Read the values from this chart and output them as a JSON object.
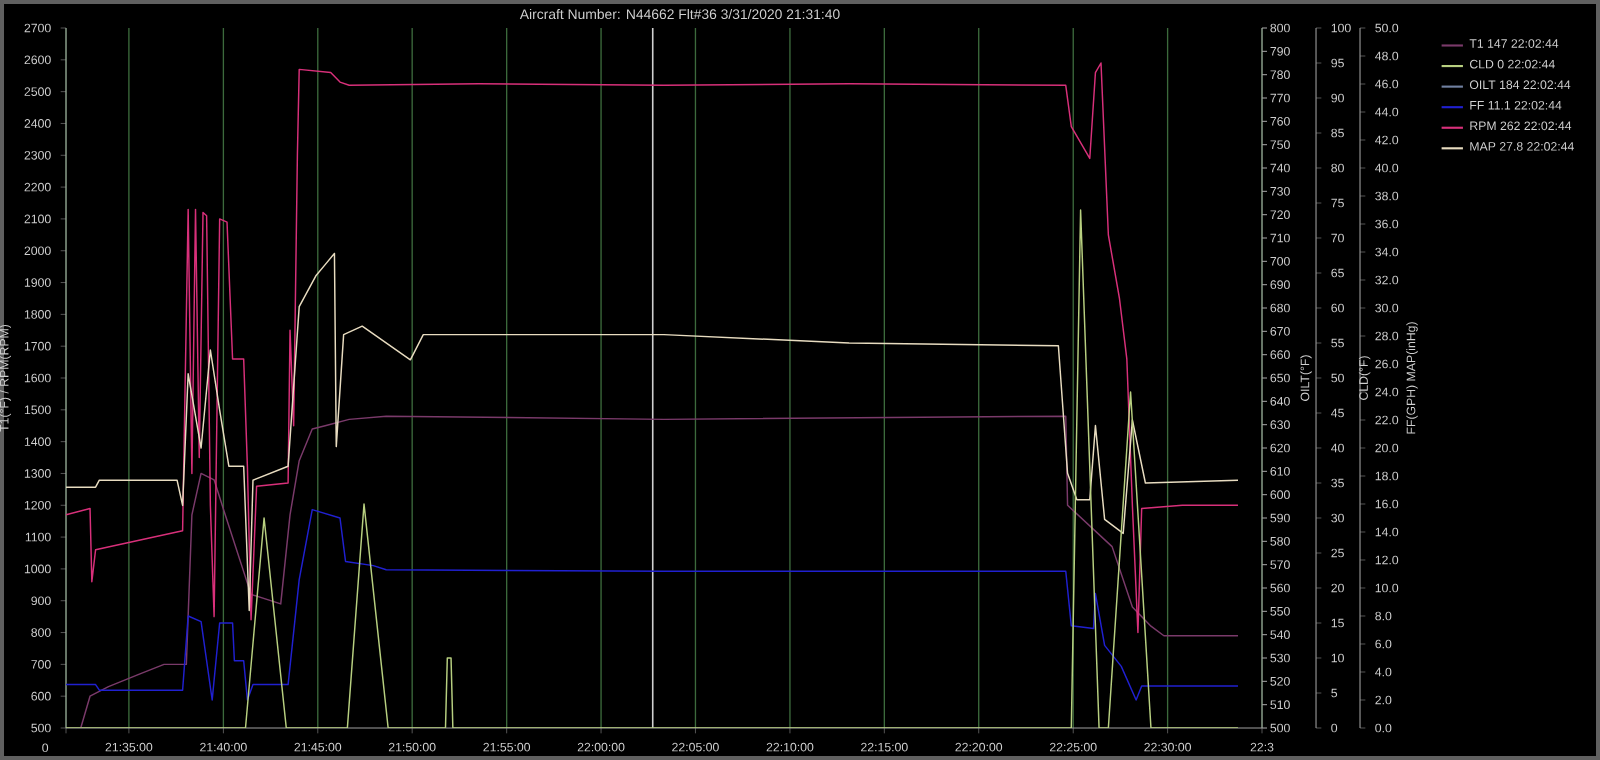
{
  "chart_data": {
    "type": "line",
    "title": "Aircraft Number: N44662 Flt#36 3/31/2020 21:31:40",
    "ylabel": "T1(°F) / RPM(RPM)",
    "y3label": "CLD(°F)",
    "y2label": "FF(GPH) MAP(inHg)",
    "annotations": [
      "0",
      "OILT(°F)",
      "500",
      "510",
      "520",
      "530",
      "540",
      "550",
      "560",
      "570",
      "580",
      "590",
      "600",
      "610",
      "620",
      "630",
      "640",
      "650",
      "660",
      "670",
      "680",
      "690",
      "700",
      "710",
      "720",
      "730",
      "740",
      "750",
      "760",
      "770",
      "780",
      "790",
      "800"
    ],
    "xlim": [
      21.5278,
      22.5833
    ],
    "xticks": [
      {
        "value": 21.5278,
        "label": null
      },
      {
        "value": 21.5833,
        "label": "21:35:00"
      },
      {
        "value": 21.6667,
        "label": "21:40:00"
      },
      {
        "value": 21.75,
        "label": "21:45:00"
      },
      {
        "value": 21.8333,
        "label": "21:50:00"
      },
      {
        "value": 21.9167,
        "label": "21:55:00"
      },
      {
        "value": 22.0,
        "label": "22:00:00"
      },
      {
        "value": 22.0833,
        "label": "22:05:00"
      },
      {
        "value": 22.1667,
        "label": "22:10:00"
      },
      {
        "value": 22.25,
        "label": "22:15:00"
      },
      {
        "value": 22.3333,
        "label": "22:20:00"
      },
      {
        "value": 22.4167,
        "label": "22:25:00"
      },
      {
        "value": 22.5,
        "label": "22:30:00"
      },
      {
        "value": 22.5833,
        "label": "22:3"
      }
    ],
    "ylim": [
      500,
      2700
    ],
    "yticks": [
      500,
      600,
      700,
      800,
      900,
      1000,
      1100,
      1200,
      1300,
      1400,
      1500,
      1600,
      1700,
      1800,
      1900,
      2000,
      2100,
      2200,
      2300,
      2400,
      2500,
      2600,
      2700
    ],
    "y3lim": [
      0,
      100
    ],
    "y3ticks": [
      0,
      5,
      10,
      15,
      20,
      25,
      30,
      35,
      40,
      45,
      50,
      55,
      60,
      65,
      70,
      75,
      80,
      85,
      90,
      95,
      100
    ],
    "y2lim": [
      0,
      50
    ],
    "y2ticks": [
      {
        "value": 0,
        "label": "0.0"
      },
      {
        "value": 2,
        "label": "2.0"
      },
      {
        "value": 4,
        "label": "4.0"
      },
      {
        "value": 6,
        "label": "6.0"
      },
      {
        "value": 8,
        "label": "8.0"
      },
      {
        "value": 10,
        "label": "10.0"
      },
      {
        "value": 12,
        "label": "12.0"
      },
      {
        "value": 14,
        "label": "14.0"
      },
      {
        "value": 16,
        "label": "16.0"
      },
      {
        "value": 18,
        "label": "18.0"
      },
      {
        "value": 20,
        "label": "20.0"
      },
      {
        "value": 22,
        "label": "22.0"
      },
      {
        "value": 24,
        "label": "24.0"
      },
      {
        "value": 26,
        "label": "26.0"
      },
      {
        "value": 28,
        "label": "28.0"
      },
      {
        "value": 30,
        "label": "30.0"
      },
      {
        "value": 32,
        "label": "32.0"
      },
      {
        "value": 34,
        "label": "34.0"
      },
      {
        "value": 36,
        "label": "36.0"
      },
      {
        "value": 38,
        "label": "38.0"
      },
      {
        "value": 40,
        "label": "40.0"
      },
      {
        "value": 42,
        "label": "42.0"
      },
      {
        "value": 44,
        "label": "44.0"
      },
      {
        "value": 46,
        "label": "46.0"
      },
      {
        "value": 48,
        "label": "48.0"
      },
      {
        "value": 50,
        "label": "50.0"
      }
    ],
    "grid": "x",
    "legend": "top right",
    "ref_lines": [
      {
        "axis": "x",
        "value": 22.0456,
        "color": "#d0d0d0"
      }
    ],
    "series": [
      {
        "name": "T1 147 22:02:44",
        "color": "#7a3a6a",
        "axis": "y",
        "x": [
          21.5408,
          21.549,
          21.5653,
          21.5931,
          21.6143,
          21.634,
          21.6389,
          21.647,
          21.6585,
          21.6683,
          21.6911,
          21.7173,
          21.7255,
          21.7336,
          21.7451,
          21.7565,
          21.7777,
          21.8104,
          22.0555,
          22.4101,
          22.4117,
          22.451,
          22.4689,
          22.4853,
          22.4967,
          22.5621
        ],
        "values": [
          500,
          600,
          630,
          670,
          700,
          700,
          1170,
          1300,
          1280,
          1170,
          920,
          890,
          1170,
          1340,
          1440,
          1450,
          1470,
          1480,
          1470,
          1480,
          1200,
          1070,
          880,
          820,
          790,
          790
        ]
      },
      {
        "name": "CLD 0 22:02:44",
        "color": "#b8d080",
        "axis": "y3",
        "x": [
          21.5278,
          21.6862,
          21.7026,
          21.7222,
          21.7761,
          21.7908,
          21.8121,
          21.8627,
          21.8643,
          21.8676,
          21.8692,
          22.415,
          22.4232,
          22.4395,
          22.4477,
          22.4673,
          22.4853,
          22.5621
        ],
        "values": [
          0,
          0,
          30,
          0,
          0,
          32,
          0,
          0,
          10,
          10,
          0,
          0,
          74,
          0,
          0,
          48,
          0,
          0
        ]
      },
      {
        "name": "OILT 184 22:02:44",
        "color": "#7080a0"
      },
      {
        "name": "FF 11.1 22:02:44",
        "color": "#2020d0",
        "axis": "y2",
        "x": [
          21.5278,
          21.5539,
          21.5572,
          21.6307,
          21.6356,
          21.647,
          21.6568,
          21.6634,
          21.6748,
          21.6764,
          21.6846,
          21.6879,
          21.6928,
          21.7238,
          21.7336,
          21.7451,
          21.7696,
          21.7745,
          21.799,
          21.8104,
          22.0555,
          22.4101,
          22.415,
          22.4346,
          22.4363,
          22.4444,
          22.4591,
          22.4722,
          22.4771,
          22.5621
        ],
        "values": [
          3.1,
          3.1,
          2.7,
          2.7,
          8.0,
          7.6,
          2.0,
          7.5,
          7.5,
          4.8,
          4.8,
          2.0,
          3.1,
          3.1,
          10.6,
          15.6,
          15.0,
          11.9,
          11.6,
          11.3,
          11.2,
          11.2,
          7.3,
          7.1,
          9.6,
          5.9,
          4.4,
          2.0,
          3.0,
          3.0
        ]
      },
      {
        "name": "RPM 262 22:02:44",
        "color": "#d8307a",
        "axis": "y",
        "x": [
          21.5278,
          21.549,
          21.5506,
          21.5539,
          21.6307,
          21.6356,
          21.6389,
          21.6421,
          21.6454,
          21.6487,
          21.6519,
          21.6552,
          21.6585,
          21.6634,
          21.6699,
          21.6748,
          21.6846,
          21.6879,
          21.6911,
          21.696,
          21.7238,
          21.7255,
          21.7287,
          21.732,
          21.7336,
          21.7614,
          21.7696,
          21.7777,
          21.8921,
          22.0555,
          22.2189,
          22.4101,
          22.415,
          22.4313,
          22.4363,
          22.4412,
          22.4477,
          22.4575,
          22.464,
          22.4689,
          22.4738,
          22.4771,
          22.513,
          22.5621
        ],
        "values": [
          1170,
          1190,
          960,
          1060,
          1120,
          2130,
          1300,
          2130,
          1350,
          2120,
          2110,
          1200,
          850,
          2100,
          2090,
          1660,
          1660,
          1320,
          840,
          1260,
          1270,
          1750,
          1450,
          2300,
          2570,
          2560,
          2530,
          2520,
          2525,
          2520,
          2525,
          2520,
          2390,
          2290,
          2560,
          2590,
          2050,
          1850,
          1660,
          1200,
          800,
          1190,
          1200,
          1200
        ]
      },
      {
        "name": "MAP 27.8 22:02:44",
        "color": "#e8dcc0",
        "axis": "y2",
        "x": [
          21.5278,
          21.5539,
          21.5572,
          21.6258,
          21.6307,
          21.6356,
          21.647,
          21.6552,
          21.6634,
          21.6715,
          21.6846,
          21.6895,
          21.6928,
          21.7238,
          21.7336,
          21.7483,
          21.7565,
          21.7647,
          21.7663,
          21.7728,
          21.7892,
          21.8317,
          21.8431,
          22.0555,
          22.2189,
          22.4036,
          22.4117,
          22.4199,
          22.4313,
          22.4363,
          22.4444,
          22.4608,
          22.4689,
          22.4804,
          22.5621
        ],
        "values": [
          17.2,
          17.2,
          17.7,
          17.7,
          15.9,
          25.3,
          20.0,
          27.0,
          22.7,
          18.7,
          18.7,
          8.4,
          17.7,
          18.7,
          30.1,
          32.3,
          33.1,
          33.9,
          20.1,
          28.1,
          28.7,
          26.3,
          28.1,
          28.1,
          27.5,
          27.3,
          18.2,
          16.3,
          16.3,
          21.6,
          14.9,
          13.9,
          22.0,
          17.5,
          17.7
        ]
      }
    ]
  }
}
